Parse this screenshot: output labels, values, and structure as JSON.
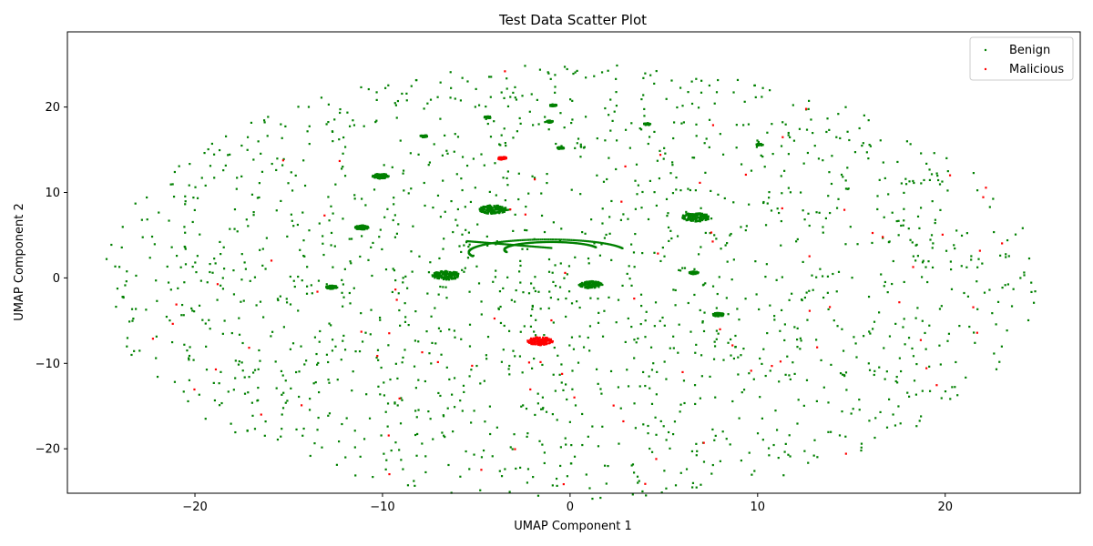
{
  "chart_data": {
    "type": "scatter",
    "title": "Test Data Scatter Plot",
    "xlabel": "UMAP Component 1",
    "ylabel": "UMAP Component 2",
    "xlim": [
      -26.8,
      27.2
    ],
    "ylim": [
      -25.2,
      28.8
    ],
    "xticks": [
      -20,
      -10,
      0,
      10,
      20
    ],
    "yticks": [
      -20,
      -10,
      0,
      10,
      20
    ],
    "grid": false,
    "legend": "top-right",
    "series": [
      {
        "name": "Benign",
        "color": "#008000",
        "clusters": [
          {
            "x": -10.1,
            "y": 11.9,
            "r": 0.35
          },
          {
            "x": -4.1,
            "y": 8.0,
            "r": 0.6
          },
          {
            "x": 6.7,
            "y": 7.1,
            "r": 0.6
          },
          {
            "x": -6.6,
            "y": 0.3,
            "r": 0.6
          },
          {
            "x": -11.1,
            "y": 5.9,
            "r": 0.3
          },
          {
            "x": 1.1,
            "y": -0.8,
            "r": 0.5
          },
          {
            "x": -12.7,
            "y": -1.1,
            "r": 0.25
          },
          {
            "x": 6.6,
            "y": 0.6,
            "r": 0.2
          },
          {
            "x": 7.9,
            "y": -4.3,
            "r": 0.25
          },
          {
            "x": -0.9,
            "y": 20.2,
            "r": 0.15
          },
          {
            "x": -1.1,
            "y": 18.3,
            "r": 0.15
          },
          {
            "x": 4.1,
            "y": 18.0,
            "r": 0.15
          },
          {
            "x": -4.4,
            "y": 18.8,
            "r": 0.15
          },
          {
            "x": -7.8,
            "y": 16.6,
            "r": 0.15
          },
          {
            "x": 10.1,
            "y": 15.6,
            "r": 0.15
          },
          {
            "x": -0.5,
            "y": 15.2,
            "r": 0.15
          }
        ],
        "scatter": {
          "count": 1700,
          "x_radius": 25,
          "y_radius": 25.5,
          "seed": 12345
        }
      },
      {
        "name": "Malicious",
        "color": "#ff0000",
        "clusters": [
          {
            "x": -1.6,
            "y": -7.4,
            "r": 0.55
          },
          {
            "x": -3.6,
            "y": 14.0,
            "r": 0.2
          }
        ],
        "scatter": {
          "count": 85,
          "x_radius": 25,
          "y_radius": 25.5,
          "seed": 987
        }
      }
    ]
  }
}
